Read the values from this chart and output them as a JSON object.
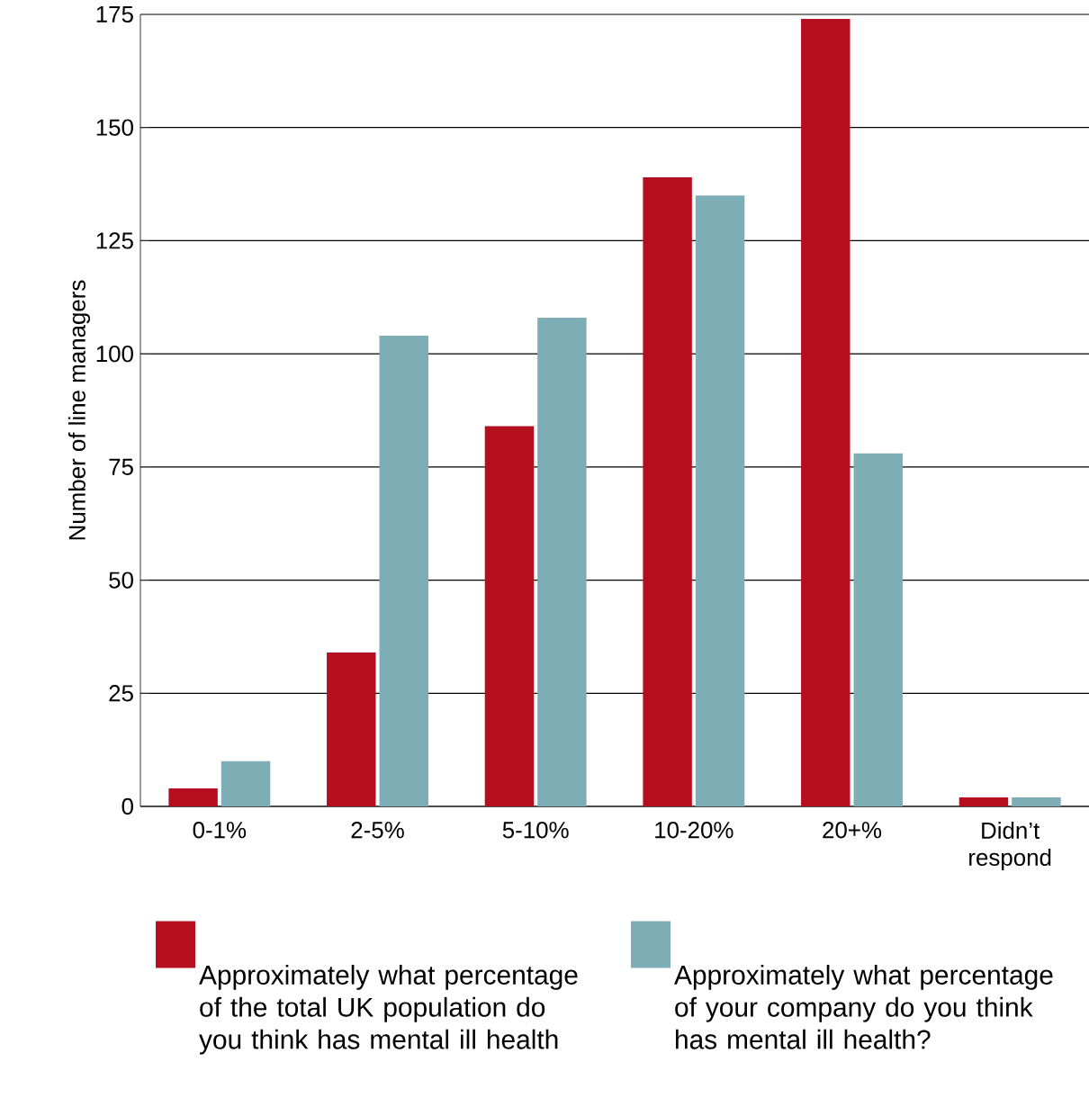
{
  "chart_data": {
    "type": "bar",
    "ylabel": "Number of line managers",
    "categories": [
      "0-1%",
      "2-5%",
      "5-10%",
      "10-20%",
      "20+%",
      "Didn’t respond"
    ],
    "series": [
      {
        "name": "Approximately what percentage of the total UK population do you think has mental ill health",
        "color": "#b50e1e",
        "values": [
          4,
          34,
          84,
          139,
          174,
          2
        ]
      },
      {
        "name": "Approximately what percentage of your company do you think has mental ill health?",
        "color": "#7eaeb5",
        "values": [
          10,
          104,
          108,
          135,
          78,
          2
        ]
      }
    ],
    "ylim": [
      0,
      175
    ],
    "yticks": [
      0,
      25,
      50,
      75,
      100,
      125,
      150,
      175
    ],
    "grid": "y",
    "legend": "bottom"
  }
}
